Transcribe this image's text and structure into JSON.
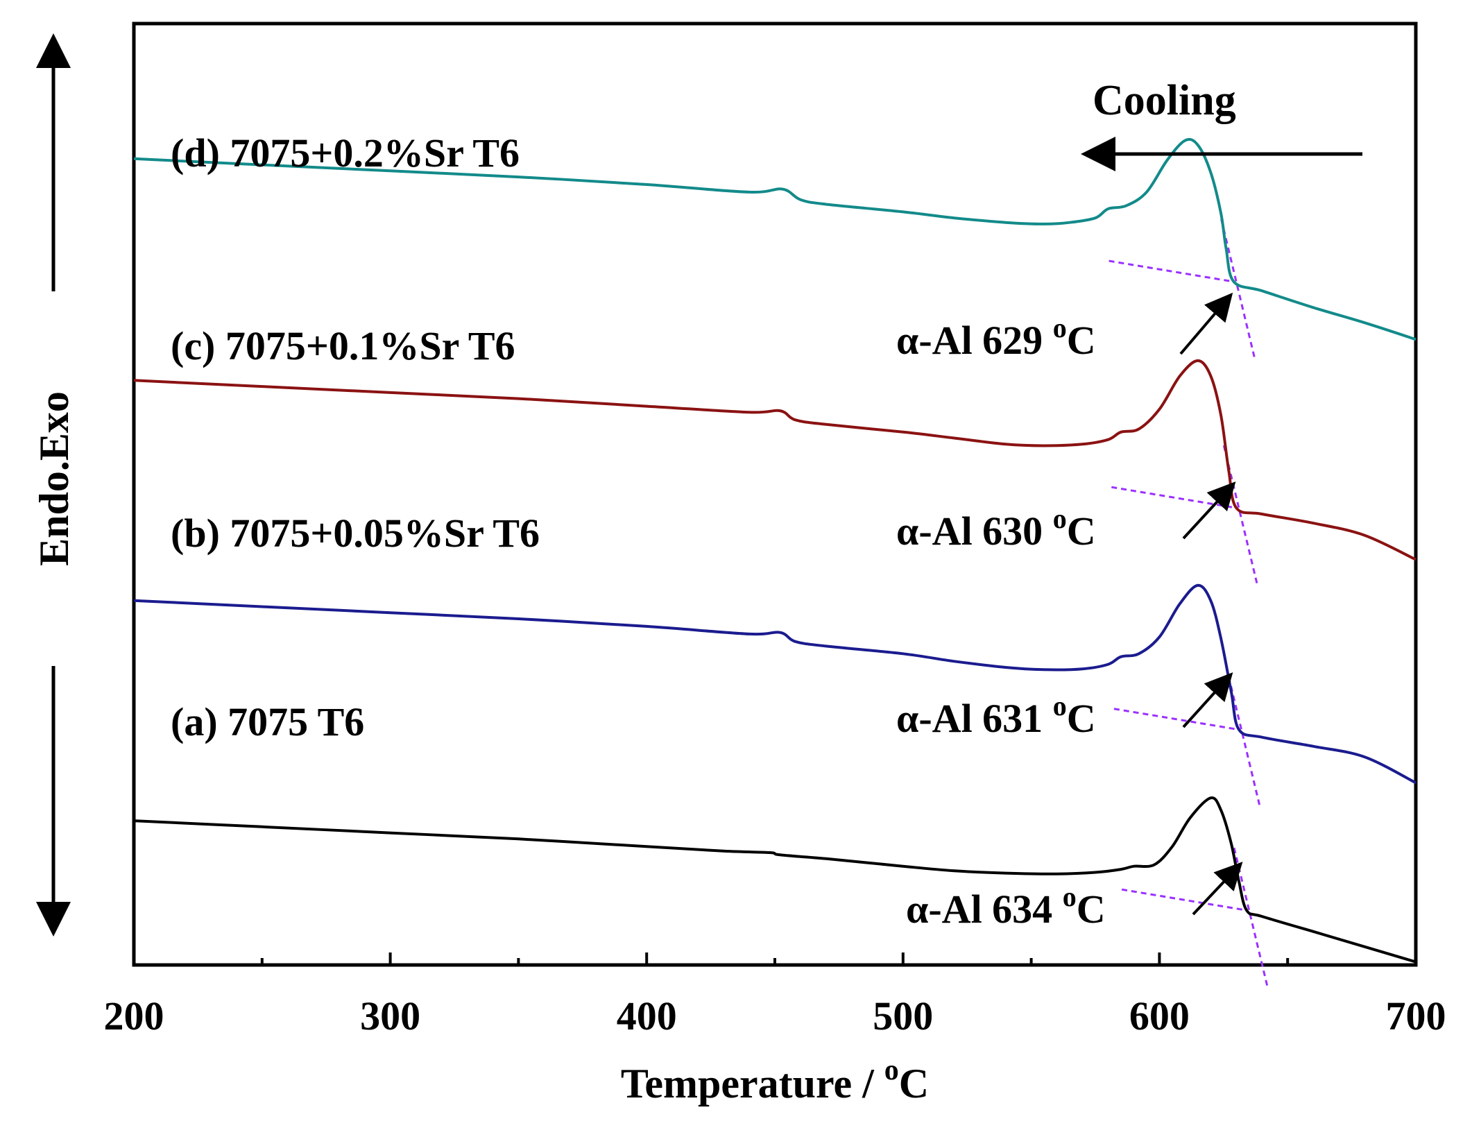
{
  "chart_data": {
    "type": "line",
    "title": "",
    "xlabel": "Temperature / ",
    "xlabel_sup": "o",
    "xlabel_unit": "C",
    "ylabel": "Endo.Exo",
    "xlim": [
      200,
      700
    ],
    "xticks": [
      200,
      300,
      400,
      500,
      600,
      700
    ],
    "minor_xticks": [
      250,
      350,
      450,
      550,
      650
    ],
    "yaxis_ticks": "none (arbitrary heat-flow units, curves offset vertically)",
    "direction_label": "Cooling",
    "series": [
      {
        "id": "a",
        "name": "(a) 7075 T6",
        "color": "#000000",
        "x": [
          200,
          250,
          300,
          350,
          400,
          430,
          448,
          452,
          470,
          500,
          520,
          540,
          560,
          575,
          585,
          590,
          598,
          605,
          612,
          620,
          624,
          628,
          631,
          634,
          640,
          660,
          680,
          700
        ],
        "y": [
          0.95,
          0.91,
          0.87,
          0.83,
          0.78,
          0.75,
          0.74,
          0.725,
          0.7,
          0.65,
          0.62,
          0.605,
          0.6,
          0.61,
          0.63,
          0.65,
          0.66,
          0.78,
          0.97,
          1.1,
          1.02,
          0.8,
          0.55,
          0.36,
          0.32,
          0.22,
          0.12,
          0.02
        ]
      },
      {
        "id": "b",
        "name": "(b) 7075+0.05%Sr T6",
        "color": "#1b1b8f",
        "x": [
          200,
          250,
          300,
          350,
          400,
          440,
          452,
          458,
          470,
          500,
          520,
          540,
          555,
          570,
          580,
          585,
          592,
          600,
          608,
          615,
          620,
          624,
          628,
          631,
          640,
          660,
          680,
          700
        ],
        "y": [
          2.4,
          2.36,
          2.32,
          2.28,
          2.23,
          2.18,
          2.19,
          2.13,
          2.1,
          2.05,
          2.0,
          1.96,
          1.945,
          1.95,
          1.98,
          2.03,
          2.05,
          2.16,
          2.38,
          2.5,
          2.4,
          2.15,
          1.8,
          1.55,
          1.5,
          1.44,
          1.37,
          1.2
        ]
      },
      {
        "id": "c",
        "name": "(c) 7075+0.1%Sr T6",
        "color": "#8b1212",
        "x": [
          200,
          250,
          300,
          350,
          400,
          440,
          452,
          458,
          470,
          500,
          520,
          540,
          555,
          570,
          580,
          585,
          592,
          600,
          608,
          615,
          620,
          624,
          627,
          630,
          640,
          660,
          680,
          700
        ],
        "y": [
          3.85,
          3.81,
          3.77,
          3.73,
          3.68,
          3.64,
          3.65,
          3.59,
          3.56,
          3.51,
          3.47,
          3.43,
          3.42,
          3.43,
          3.46,
          3.51,
          3.53,
          3.66,
          3.88,
          3.98,
          3.88,
          3.62,
          3.26,
          3.01,
          2.97,
          2.91,
          2.83,
          2.67
        ]
      },
      {
        "id": "d",
        "name": "(d) 7075+0.2%Sr T6",
        "color": "#138a8a",
        "x": [
          200,
          250,
          300,
          350,
          400,
          440,
          453,
          460,
          470,
          500,
          520,
          540,
          555,
          565,
          575,
          580,
          587,
          595,
          603,
          610,
          615,
          620,
          624,
          626,
          629,
          640,
          660,
          680,
          700
        ],
        "y": [
          5.31,
          5.27,
          5.23,
          5.19,
          5.14,
          5.09,
          5.11,
          5.04,
          5.01,
          4.96,
          4.92,
          4.89,
          4.88,
          4.89,
          4.92,
          4.98,
          5.0,
          5.09,
          5.3,
          5.43,
          5.4,
          5.22,
          4.95,
          4.72,
          4.5,
          4.44,
          4.33,
          4.23,
          4.12
        ]
      }
    ],
    "annotations": [
      {
        "series": "a",
        "text": "α-Al 634 ",
        "sup": "o",
        "unit": "C",
        "x": 634
      },
      {
        "series": "b",
        "text": "α-Al 631 ",
        "sup": "o",
        "unit": "C",
        "x": 631
      },
      {
        "series": "c",
        "text": "α-Al 630 ",
        "sup": "o",
        "unit": "C",
        "x": 630
      },
      {
        "series": "d",
        "text": "α-Al 629 ",
        "sup": "o",
        "unit": "C",
        "x": 629
      }
    ],
    "tangent_line_color": "#9b30ff"
  }
}
